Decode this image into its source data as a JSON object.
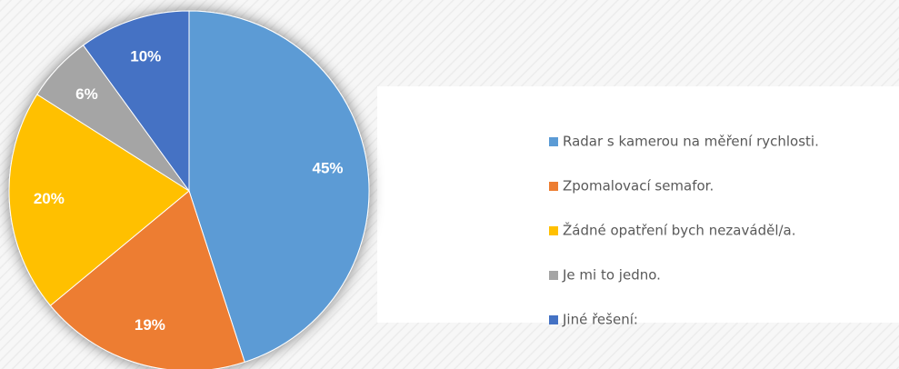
{
  "chart_data": {
    "type": "pie",
    "categories": [
      "Radar s kamerou na měření rychlosti.",
      "Zpomalovací semafor.",
      "Žádné opatření bych nezaváděl/a.",
      "Je mi to jedno.",
      "Jiné řešení:"
    ],
    "values": [
      45,
      19,
      20,
      6,
      10
    ],
    "value_labels": [
      "45%",
      "19%",
      "20%",
      "6%",
      "10%"
    ],
    "colors": [
      "#5b9bd5",
      "#ed7d31",
      "#ffc000",
      "#a5a5a5",
      "#4472c4"
    ],
    "legend": "right"
  }
}
